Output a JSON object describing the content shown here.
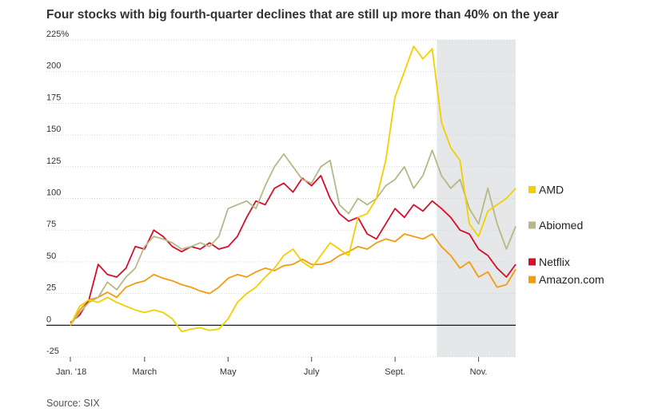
{
  "chart_data": {
    "type": "line",
    "title": "Four stocks with big fourth-quarter declines that are still up more than 40% on the year",
    "source": "Source: SIX",
    "ylim": [
      -25,
      225
    ],
    "yticks": [
      -25,
      0,
      25,
      50,
      75,
      100,
      125,
      150,
      175,
      200,
      225
    ],
    "ytick_labels": [
      "-25",
      "0",
      "25",
      "50",
      "75",
      "100",
      "125",
      "150",
      "175",
      "200",
      "225%"
    ],
    "xlim": [
      0,
      48
    ],
    "xtick_labels": [
      {
        "label": "Jan. '18",
        "x": 0
      },
      {
        "label": "March",
        "x": 8
      },
      {
        "label": "May",
        "x": 17
      },
      {
        "label": "July",
        "x": 26
      },
      {
        "label": "Sept.",
        "x": 35
      },
      {
        "label": "Nov.",
        "x": 44
      }
    ],
    "shaded_region": {
      "x0": 39.5,
      "x1": 48,
      "color": "#e6e7e9"
    },
    "series": [
      {
        "name": "Amazon.com",
        "color": "#f39c11",
        "points": [
          [
            0,
            0
          ],
          [
            1,
            12
          ],
          [
            2,
            20
          ],
          [
            3,
            22
          ],
          [
            4,
            26
          ],
          [
            5,
            22
          ],
          [
            6,
            30
          ],
          [
            7,
            33
          ],
          [
            8,
            35
          ],
          [
            9,
            40
          ],
          [
            10,
            37
          ],
          [
            11,
            35
          ],
          [
            12,
            32
          ],
          [
            13,
            30
          ],
          [
            14,
            27
          ],
          [
            15,
            25
          ],
          [
            16,
            30
          ],
          [
            17,
            37
          ],
          [
            18,
            40
          ],
          [
            19,
            38
          ],
          [
            20,
            42
          ],
          [
            21,
            45
          ],
          [
            22,
            43
          ],
          [
            23,
            47
          ],
          [
            24,
            48
          ],
          [
            25,
            52
          ],
          [
            26,
            48
          ],
          [
            27,
            48
          ],
          [
            28,
            50
          ],
          [
            29,
            55
          ],
          [
            30,
            58
          ],
          [
            31,
            62
          ],
          [
            32,
            60
          ],
          [
            33,
            65
          ],
          [
            34,
            68
          ],
          [
            35,
            66
          ],
          [
            36,
            72
          ],
          [
            37,
            70
          ],
          [
            38,
            68
          ],
          [
            39,
            72
          ],
          [
            40,
            62
          ],
          [
            41,
            55
          ],
          [
            42,
            45
          ],
          [
            43,
            50
          ],
          [
            44,
            38
          ],
          [
            45,
            42
          ],
          [
            46,
            30
          ],
          [
            47,
            32
          ],
          [
            48,
            44
          ]
        ]
      },
      {
        "name": "Netflix",
        "color": "#d4112a",
        "points": [
          [
            0,
            2
          ],
          [
            1,
            8
          ],
          [
            2,
            20
          ],
          [
            3,
            48
          ],
          [
            4,
            40
          ],
          [
            5,
            38
          ],
          [
            6,
            45
          ],
          [
            7,
            62
          ],
          [
            8,
            60
          ],
          [
            9,
            75
          ],
          [
            10,
            70
          ],
          [
            11,
            62
          ],
          [
            12,
            58
          ],
          [
            13,
            62
          ],
          [
            14,
            60
          ],
          [
            15,
            65
          ],
          [
            16,
            60
          ],
          [
            17,
            62
          ],
          [
            18,
            70
          ],
          [
            19,
            85
          ],
          [
            20,
            98
          ],
          [
            21,
            95
          ],
          [
            22,
            108
          ],
          [
            23,
            112
          ],
          [
            24,
            105
          ],
          [
            25,
            116
          ],
          [
            26,
            110
          ],
          [
            27,
            118
          ],
          [
            28,
            100
          ],
          [
            29,
            88
          ],
          [
            30,
            82
          ],
          [
            31,
            85
          ],
          [
            32,
            72
          ],
          [
            33,
            68
          ],
          [
            34,
            80
          ],
          [
            35,
            92
          ],
          [
            36,
            85
          ],
          [
            37,
            95
          ],
          [
            38,
            90
          ],
          [
            39,
            98
          ],
          [
            40,
            92
          ],
          [
            41,
            85
          ],
          [
            42,
            75
          ],
          [
            43,
            72
          ],
          [
            44,
            60
          ],
          [
            45,
            55
          ],
          [
            46,
            45
          ],
          [
            47,
            38
          ],
          [
            48,
            48
          ]
        ]
      },
      {
        "name": "Abiomed",
        "color": "#b7b887",
        "points": [
          [
            0,
            0
          ],
          [
            1,
            10
          ],
          [
            2,
            18
          ],
          [
            3,
            22
          ],
          [
            4,
            34
          ],
          [
            5,
            28
          ],
          [
            6,
            38
          ],
          [
            7,
            45
          ],
          [
            8,
            62
          ],
          [
            9,
            70
          ],
          [
            10,
            68
          ],
          [
            11,
            65
          ],
          [
            12,
            60
          ],
          [
            13,
            62
          ],
          [
            14,
            65
          ],
          [
            15,
            62
          ],
          [
            16,
            70
          ],
          [
            17,
            92
          ],
          [
            18,
            95
          ],
          [
            19,
            98
          ],
          [
            20,
            92
          ],
          [
            21,
            110
          ],
          [
            22,
            125
          ],
          [
            23,
            135
          ],
          [
            24,
            125
          ],
          [
            25,
            115
          ],
          [
            26,
            112
          ],
          [
            27,
            125
          ],
          [
            28,
            130
          ],
          [
            29,
            95
          ],
          [
            30,
            88
          ],
          [
            31,
            100
          ],
          [
            32,
            95
          ],
          [
            33,
            100
          ],
          [
            34,
            110
          ],
          [
            35,
            115
          ],
          [
            36,
            125
          ],
          [
            37,
            108
          ],
          [
            38,
            118
          ],
          [
            39,
            138
          ],
          [
            40,
            118
          ],
          [
            41,
            108
          ],
          [
            42,
            115
          ],
          [
            43,
            92
          ],
          [
            44,
            80
          ],
          [
            45,
            108
          ],
          [
            46,
            80
          ],
          [
            47,
            60
          ],
          [
            48,
            78
          ]
        ]
      },
      {
        "name": "AMD",
        "color": "#f2d000",
        "points": [
          [
            0,
            0
          ],
          [
            1,
            15
          ],
          [
            2,
            20
          ],
          [
            3,
            18
          ],
          [
            4,
            22
          ],
          [
            5,
            18
          ],
          [
            6,
            15
          ],
          [
            7,
            12
          ],
          [
            8,
            10
          ],
          [
            9,
            12
          ],
          [
            10,
            10
          ],
          [
            11,
            5
          ],
          [
            12,
            -5
          ],
          [
            13,
            -3
          ],
          [
            14,
            -2
          ],
          [
            15,
            -4
          ],
          [
            16,
            -3
          ],
          [
            17,
            5
          ],
          [
            18,
            18
          ],
          [
            19,
            25
          ],
          [
            20,
            30
          ],
          [
            21,
            38
          ],
          [
            22,
            45
          ],
          [
            23,
            55
          ],
          [
            24,
            60
          ],
          [
            25,
            50
          ],
          [
            26,
            45
          ],
          [
            27,
            55
          ],
          [
            28,
            65
          ],
          [
            29,
            60
          ],
          [
            30,
            55
          ],
          [
            31,
            85
          ],
          [
            32,
            88
          ],
          [
            33,
            100
          ],
          [
            34,
            130
          ],
          [
            35,
            180
          ],
          [
            36,
            200
          ],
          [
            37,
            220
          ],
          [
            38,
            210
          ],
          [
            39,
            218
          ],
          [
            40,
            160
          ],
          [
            41,
            140
          ],
          [
            42,
            130
          ],
          [
            43,
            80
          ],
          [
            44,
            70
          ],
          [
            45,
            90
          ],
          [
            46,
            95
          ],
          [
            47,
            100
          ],
          [
            48,
            108
          ]
        ]
      }
    ],
    "legend": [
      {
        "name": "AMD",
        "color": "#f2d000",
        "y": 106
      },
      {
        "name": "Abiomed",
        "color": "#b7b887",
        "y": 78
      },
      {
        "name": "Netflix",
        "color": "#d4112a",
        "y": 49
      },
      {
        "name": "Amazon.com",
        "color": "#f39c11",
        "y": 35
      }
    ],
    "legend_placement": "right",
    "grid": "horizontal"
  }
}
